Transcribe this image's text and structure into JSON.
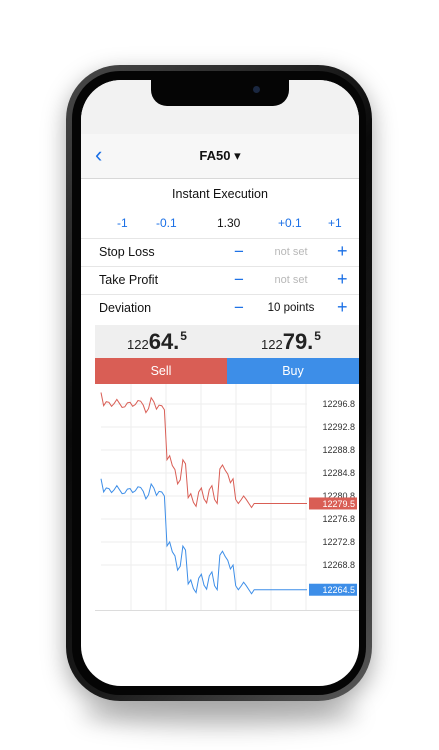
{
  "nav": {
    "back_icon": "chevron-left-icon",
    "symbol": "FA50",
    "symbol_dropdown": "▾"
  },
  "order": {
    "type": "Instant Execution",
    "volume_steps": [
      "-1",
      "-0.1",
      "+0.1",
      "+1"
    ],
    "volume": "1.30"
  },
  "fields": [
    {
      "label": "Stop Loss",
      "value": "not set"
    },
    {
      "label": "Take Profit",
      "value": "not set"
    },
    {
      "label": "Deviation",
      "value": "10 points"
    }
  ],
  "quotes": {
    "sell": {
      "prefix": "122",
      "big": "64.",
      "sup": "5"
    },
    "buy": {
      "prefix": "122",
      "big": "79.",
      "sup": "5"
    }
  },
  "actions": {
    "sell": "Sell",
    "buy": "Buy"
  },
  "colors": {
    "sell": "#d95e55",
    "buy": "#3d8ee8",
    "accent": "#1a6fe6"
  },
  "chart_data": {
    "type": "line",
    "y_ticks": [
      "12296.8",
      "12292.8",
      "12288.8",
      "12284.8",
      "12280.8",
      "12276.8",
      "12272.8",
      "12268.8"
    ],
    "series": [
      {
        "current": "12279.5",
        "values": [
          12298.8,
          12297.2,
          12296.4,
          12297.6,
          12296.2,
          12297.0,
          12296.4,
          12297.4,
          12296.6,
          12296.0,
          12297.2,
          12296.6,
          12295.8,
          12287.8,
          12285.4,
          12283.6,
          12286.4,
          12281.2,
          12279.0,
          12282.2,
          12279.6,
          12282.6,
          12279.5,
          12286.2,
          12284.6,
          12283.8,
          12279.5,
          12280.8,
          12279.5,
          12279.5,
          12279.5,
          12279.5,
          12279.5,
          12279.5,
          12279.5,
          12279.5,
          12279.5,
          12279.5,
          12279.5,
          12279.5
        ]
      },
      {
        "current": "12264.5",
        "values": [
          12283.8,
          12282.2,
          12281.4,
          12282.6,
          12281.2,
          12282.0,
          12281.4,
          12282.4,
          12281.6,
          12281.0,
          12282.2,
          12281.6,
          12280.8,
          12272.8,
          12270.4,
          12268.6,
          12271.4,
          12266.2,
          12264.0,
          12267.2,
          12264.6,
          12267.6,
          12264.5,
          12271.2,
          12269.6,
          12268.8,
          12264.5,
          12265.8,
          12264.5,
          12264.5,
          12264.5,
          12264.5,
          12264.5,
          12264.5,
          12264.5,
          12264.5,
          12264.5,
          12264.5,
          12264.5,
          12264.5
        ]
      }
    ]
  }
}
